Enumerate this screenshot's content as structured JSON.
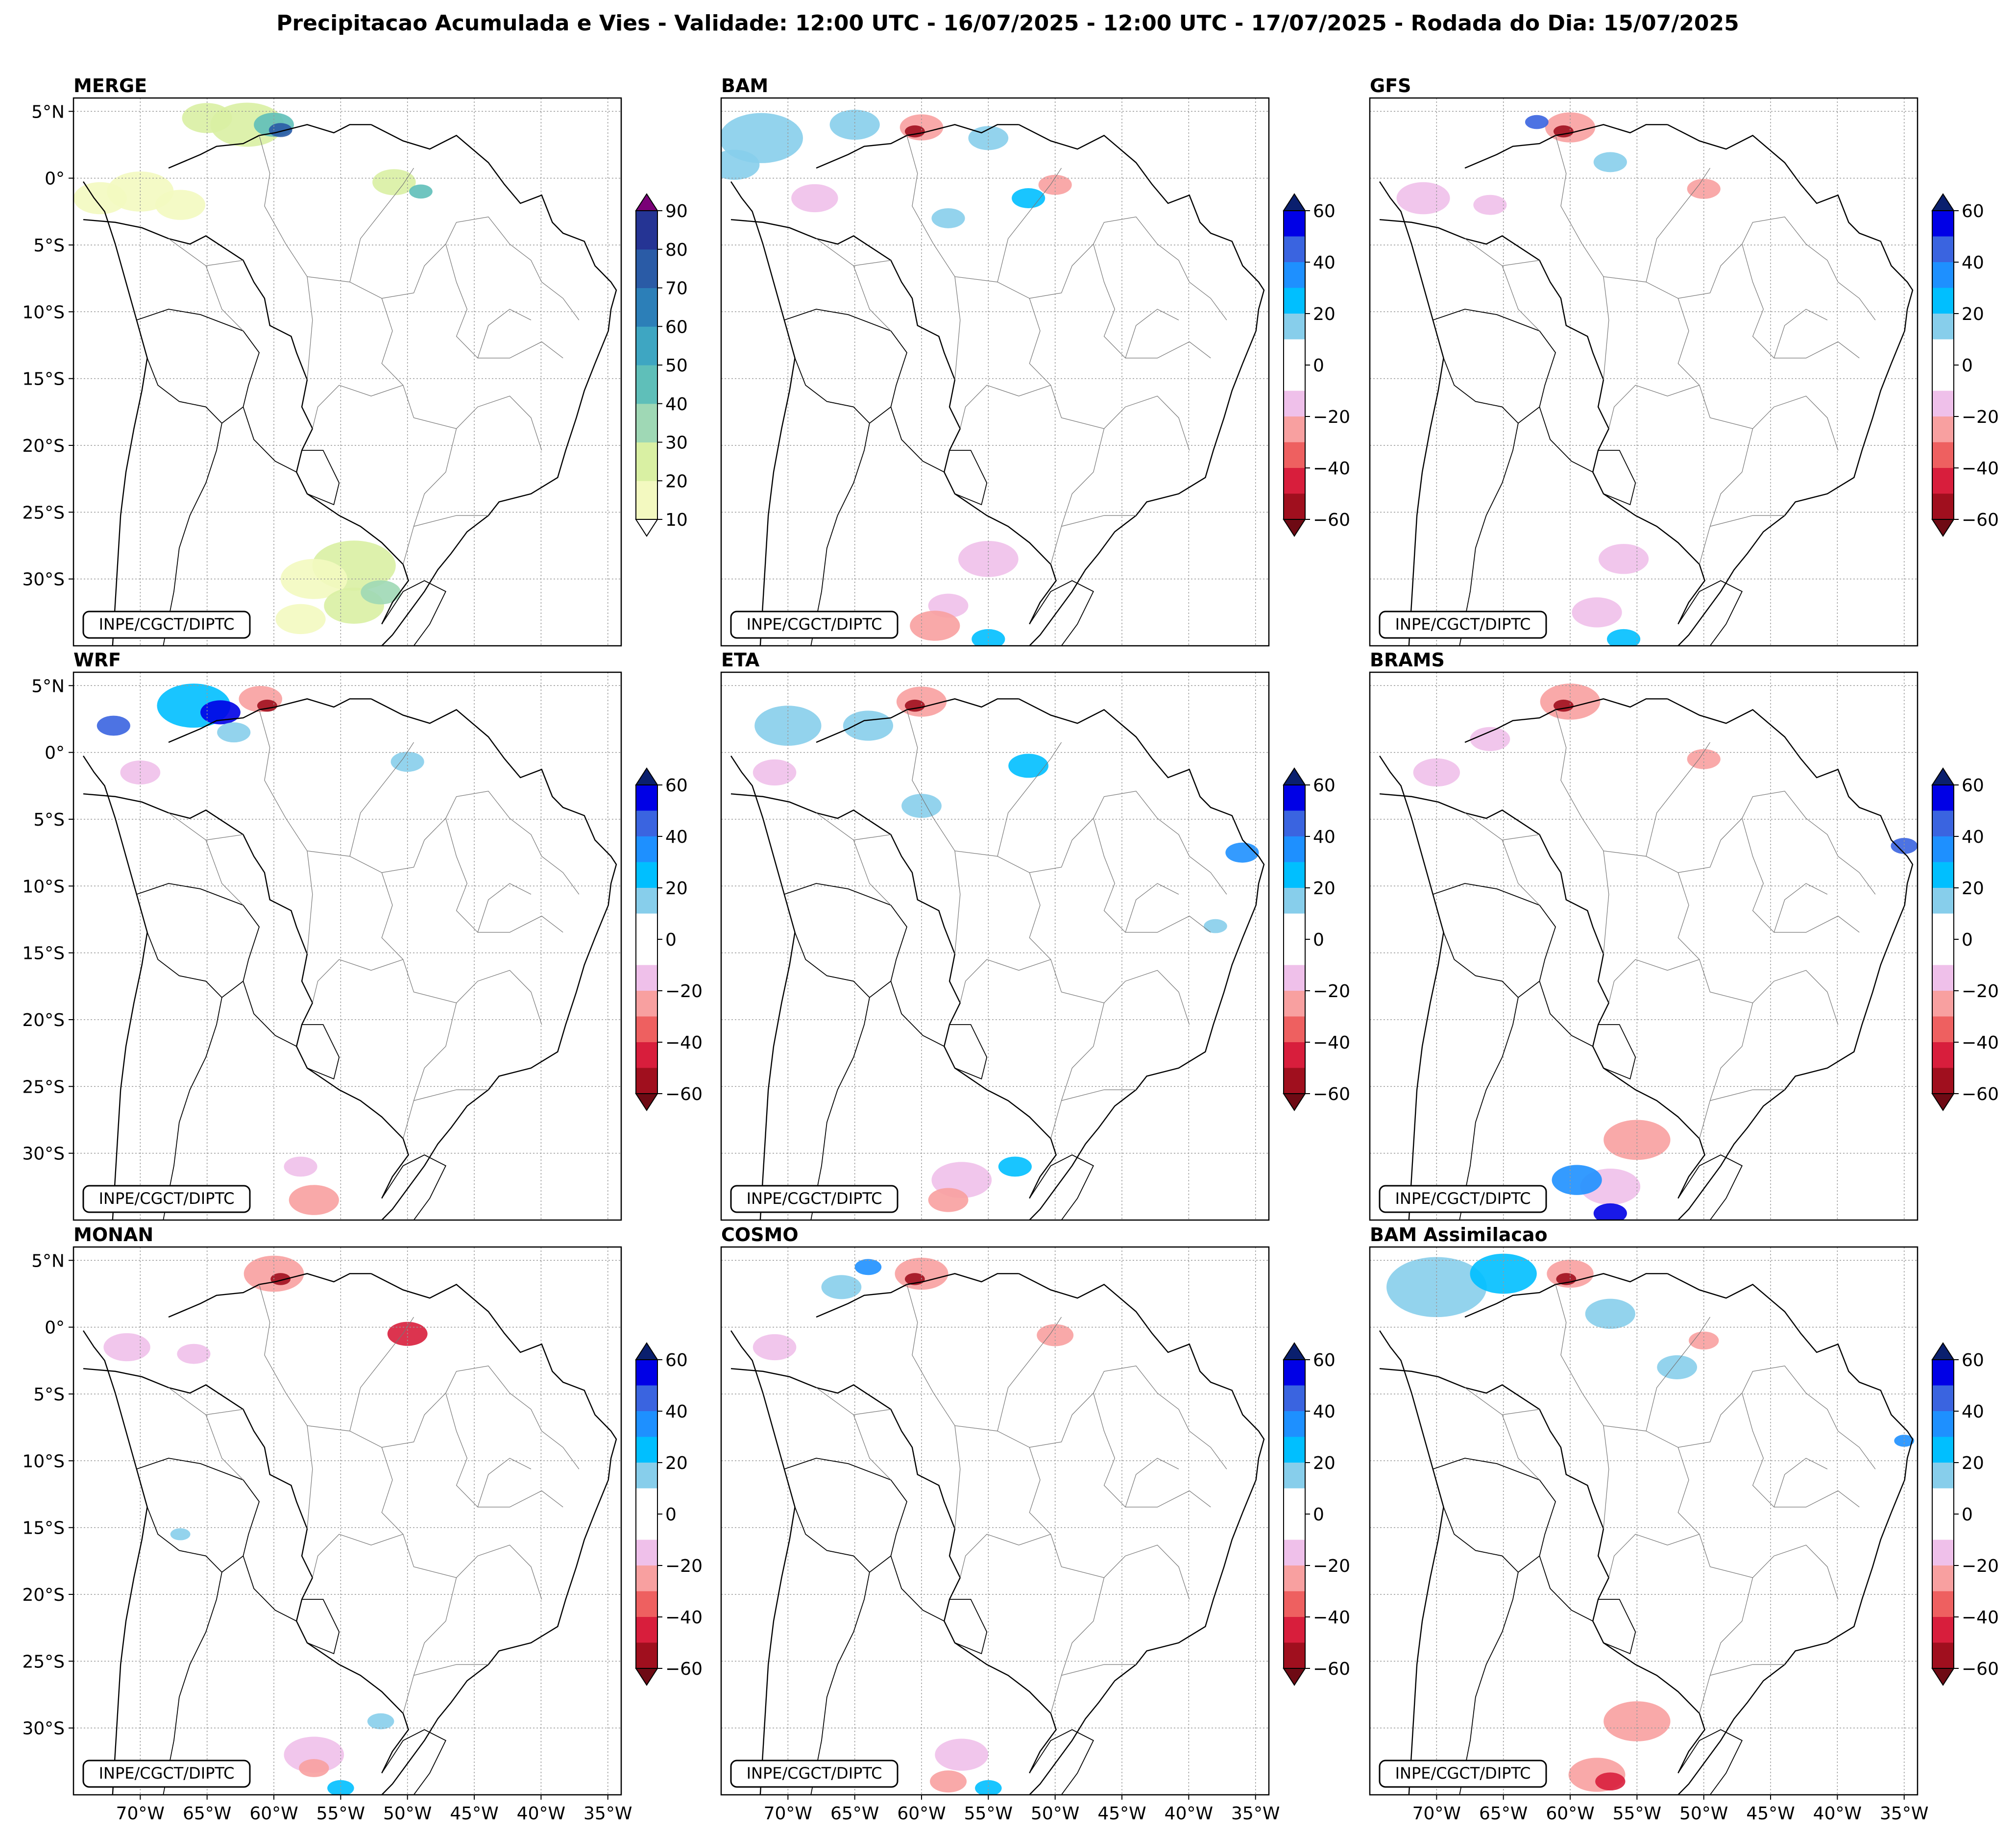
{
  "title": "Precipitacao Acumulada e Vies - Validade: 12:00 UTC - 16/07/2025 - 12:00 UTC - 17/07/2025 - Rodada do Dia: 15/07/2025",
  "credit": "INPE/CGCT/DIPTC",
  "lat_ticks": [
    "5°N",
    "0°",
    "5°S",
    "10°S",
    "15°S",
    "20°S",
    "25°S",
    "30°S"
  ],
  "lon_ticks": [
    "70°W",
    "65°W",
    "60°W",
    "55°W",
    "50°W",
    "45°W",
    "40°W",
    "35°W"
  ],
  "panels": [
    {
      "name": "MERGE",
      "colorbar": "precip"
    },
    {
      "name": "BAM",
      "colorbar": "bias"
    },
    {
      "name": "GFS",
      "colorbar": "bias"
    },
    {
      "name": "WRF",
      "colorbar": "bias"
    },
    {
      "name": "ETA",
      "colorbar": "bias"
    },
    {
      "name": "BRAMS",
      "colorbar": "bias"
    },
    {
      "name": "MONAN",
      "colorbar": "bias"
    },
    {
      "name": "COSMO",
      "colorbar": "bias"
    },
    {
      "name": "BAM Assimilacao",
      "colorbar": "bias"
    }
  ],
  "colorbars": {
    "precip": {
      "levels": [
        10,
        20,
        30,
        40,
        50,
        60,
        70,
        80,
        90
      ],
      "tick_labels": [
        "10",
        "20",
        "30",
        "40",
        "50",
        "60",
        "70",
        "80",
        "90"
      ],
      "colors": [
        "#f3f9c0",
        "#d9f0a3",
        "#9fd8b5",
        "#5fbfb9",
        "#3ea6c2",
        "#2c7fb8",
        "#2a5ba6",
        "#253494",
        "#0f1f5a"
      ],
      "over_color": "#7a0177"
    },
    "bias": {
      "tick_values": [
        60,
        40,
        20,
        0,
        -20,
        -40,
        -60
      ],
      "tick_labels": [
        "60",
        "40",
        "20",
        "0",
        "−20",
        "−40",
        "−60"
      ],
      "colors": [
        "#0000e6",
        "#3a64e0",
        "#1e90ff",
        "#00bfff",
        "#87ceeb",
        "#ffffff",
        "#ffffff",
        "#efc0ea",
        "#f8a0a0",
        "#ee6060",
        "#d81e3c",
        "#a00f1e"
      ],
      "over_color": "#0a1f6e",
      "under_color": "#6e0a14"
    }
  }
}
